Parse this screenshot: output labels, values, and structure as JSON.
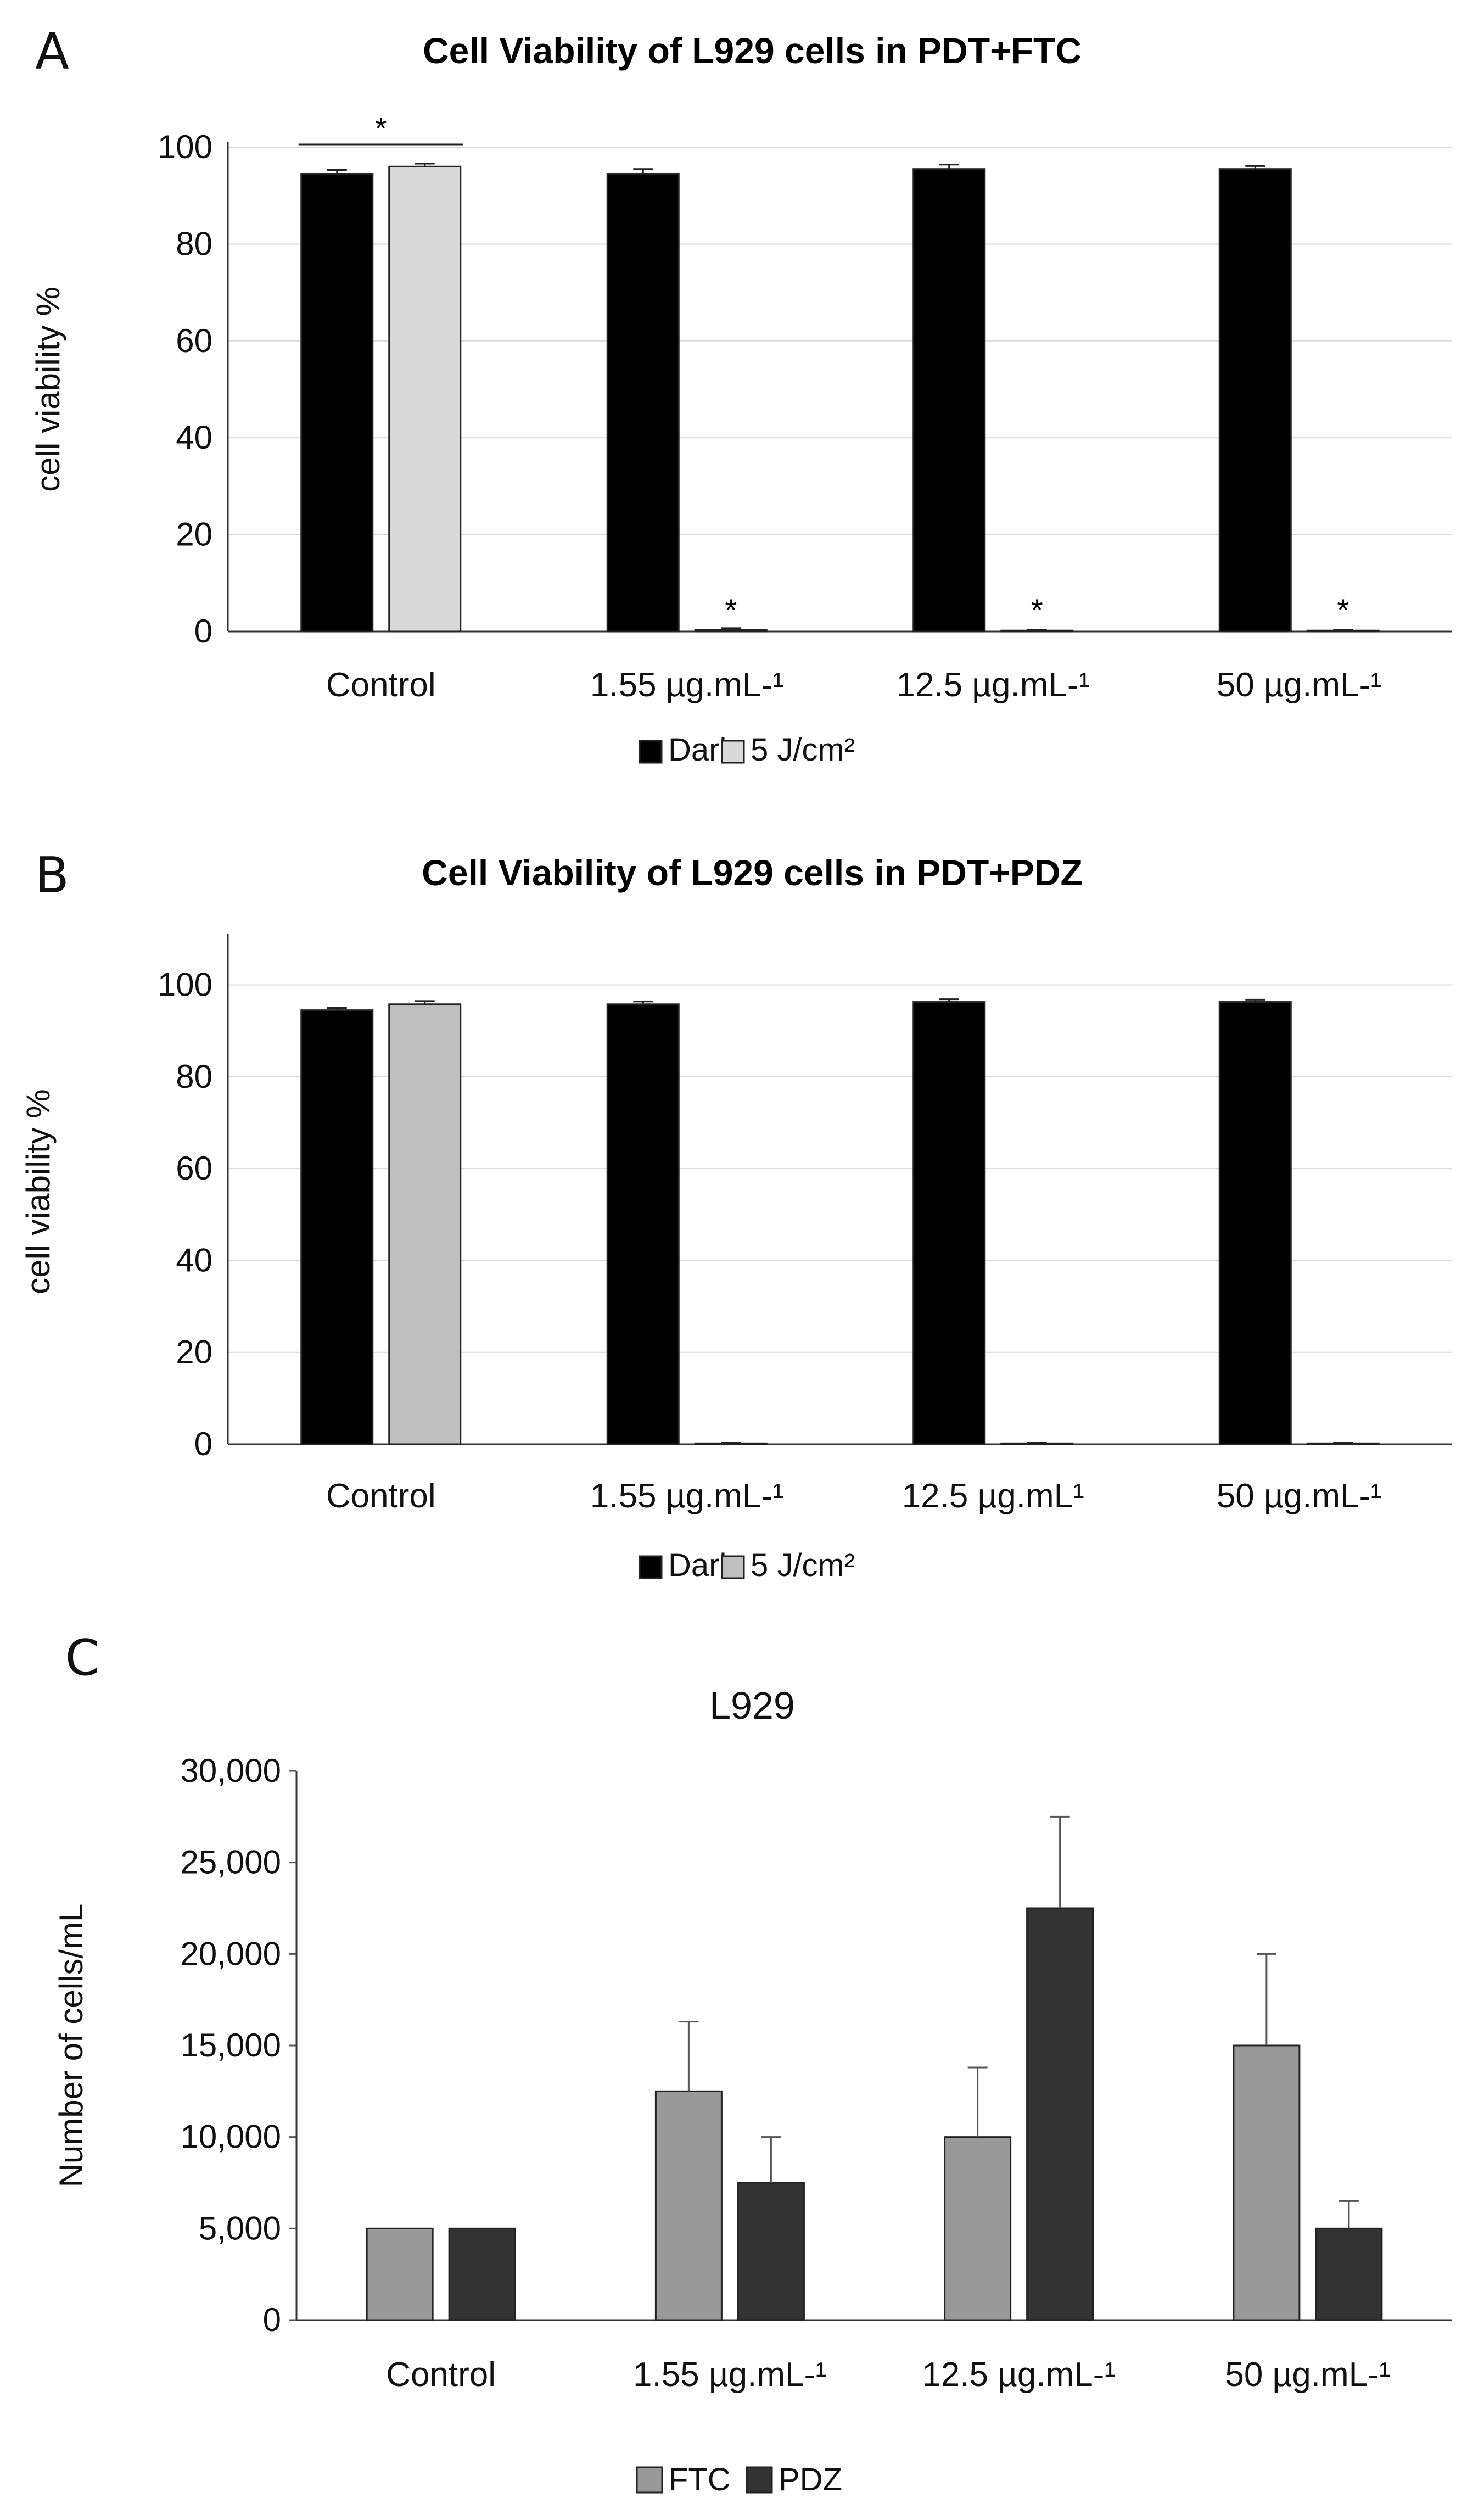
{
  "chart_data": [
    {
      "panel_label": "A",
      "type": "bar",
      "title": "Cell Viability of L929 cells in PDT+FTC",
      "xlabel": "",
      "ylabel": "cell viability %",
      "ylim": [
        0,
        100
      ],
      "yticks": [
        "0",
        "20",
        "40",
        "60",
        "80",
        "100"
      ],
      "categories": [
        "Control",
        "1.55 µg.mL-¹",
        "12.5 µg.mL-¹",
        "50 µg.mL-¹"
      ],
      "series": [
        {
          "name": "Dark",
          "color": "#000000",
          "values": [
            94.5,
            94.5,
            95.5,
            95.5
          ],
          "errors": [
            0.8,
            1.0,
            0.9,
            0.6
          ]
        },
        {
          "name": "5 J/cm²",
          "color": "#d9d9d9",
          "values": [
            96,
            0.3,
            0.2,
            0.2
          ],
          "errors": [
            0.6,
            0.4,
            0.1,
            0.1
          ]
        }
      ],
      "grid": true,
      "legend": "bottom",
      "significance": [
        {
          "text": "*",
          "bracket": "Control"
        },
        {
          "text": "*",
          "category": "1.55 µg.mL-¹"
        },
        {
          "text": "*",
          "category": "12.5 µg.mL-¹"
        },
        {
          "text": "*",
          "category": "50 µg.mL-¹"
        }
      ]
    },
    {
      "panel_label": "B",
      "type": "bar",
      "title": "Cell Viability of L929 cells in PDT+PDZ",
      "xlabel": "",
      "ylabel": "cell viability %",
      "ylim": [
        0,
        110
      ],
      "yticks": [
        "0",
        "20",
        "40",
        "60",
        "80",
        "100"
      ],
      "categories": [
        "Control",
        "1.55 µg.mL-¹",
        "12.5 µg.mL¹",
        "50 µg.mL-¹"
      ],
      "series": [
        {
          "name": "Dark",
          "color": "#000000",
          "values": [
            94.5,
            95.8,
            96.3,
            96.3
          ],
          "errors": [
            0.5,
            0.6,
            0.6,
            0.5
          ]
        },
        {
          "name": "5 J/cm²",
          "color": "#bfbfbf",
          "values": [
            95.8,
            0.2,
            0.2,
            0.2
          ],
          "errors": [
            0.7,
            0.1,
            0.1,
            0.1
          ]
        }
      ],
      "grid": true,
      "legend": "bottom"
    },
    {
      "panel_label": "C",
      "type": "bar",
      "title": "L929",
      "xlabel": "",
      "ylabel": "Number of cells/mL",
      "ylim": [
        0,
        30000
      ],
      "yticks": [
        "0",
        "5,000",
        "10,000",
        "15,000",
        "20,000",
        "25,000",
        "30,000"
      ],
      "categories": [
        "Control",
        "1.55 µg.mL-¹",
        "12.5 µg.mL-¹",
        "50 µg.mL-¹"
      ],
      "series": [
        {
          "name": "FTC",
          "color": "#999999",
          "values": [
            5000,
            12500,
            10000,
            15000
          ],
          "errors": [
            0,
            3800,
            3800,
            5000
          ]
        },
        {
          "name": "PDZ",
          "color": "#333333",
          "values": [
            5000,
            7500,
            22500,
            5000
          ],
          "errors": [
            0,
            2500,
            5000,
            1500
          ]
        }
      ],
      "grid": false,
      "legend": "bottom"
    }
  ]
}
